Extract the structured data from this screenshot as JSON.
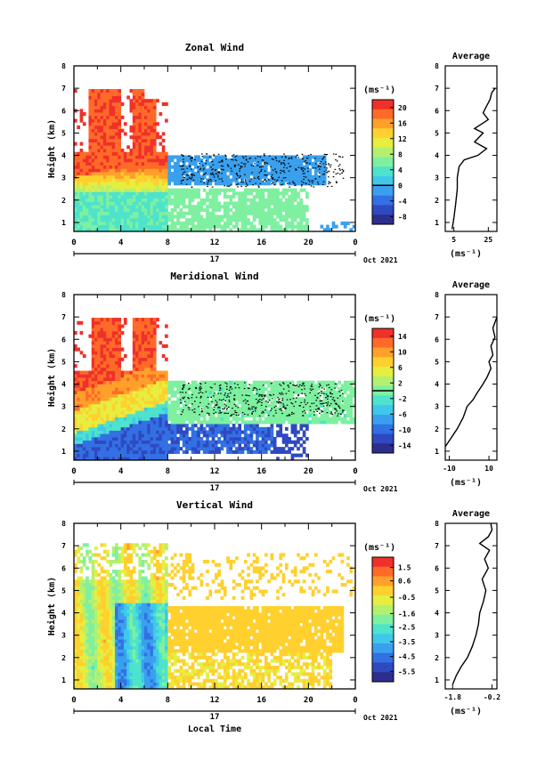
{
  "date_label": "Oct 2021",
  "day_label": "17",
  "xlabel": "Local Time",
  "ylabel": "Height (km)",
  "unit_label": "(ms⁻¹)",
  "avg_title": "Average",
  "avg_xlabel": "(ms⁻¹)",
  "palette": [
    "#2d2d8e",
    "#2f49c0",
    "#3270e4",
    "#3aa0ee",
    "#40c8ea",
    "#4de3cc",
    "#7ef0a0",
    "#b4f070",
    "#e6ee40",
    "#ffd02e",
    "#ffa02a",
    "#ff6a28",
    "#f0302a"
  ],
  "chart_data": [
    {
      "type": "heatmap",
      "title": "Zonal Wind",
      "x_ticks": [
        "0",
        "4",
        "8",
        "12",
        "16",
        "20",
        "0"
      ],
      "y_ticks": [
        "1",
        "2",
        "3",
        "4",
        "5",
        "6",
        "7",
        "8"
      ],
      "xlim": [
        0,
        24
      ],
      "ylim": [
        0.6,
        8
      ],
      "colorbar": {
        "ticks": [
          "20",
          "16",
          "12",
          "8",
          "4",
          "0",
          "-4",
          "-8"
        ],
        "range": [
          -10,
          22
        ],
        "marker": 0
      },
      "average": {
        "title": "Average",
        "x_ticks": [
          "5",
          "25"
        ],
        "xlim": [
          0,
          30
        ],
        "profile": [
          [
            0.7,
            4
          ],
          [
            1.2,
            5
          ],
          [
            1.8,
            6
          ],
          [
            2.5,
            7
          ],
          [
            3.0,
            7
          ],
          [
            3.5,
            8
          ],
          [
            3.8,
            11
          ],
          [
            4.0,
            19
          ],
          [
            4.3,
            24
          ],
          [
            4.6,
            17
          ],
          [
            5.0,
            22
          ],
          [
            5.2,
            17
          ],
          [
            5.4,
            21
          ],
          [
            5.6,
            25
          ],
          [
            5.9,
            22
          ],
          [
            6.2,
            24
          ],
          [
            6.5,
            26
          ],
          [
            6.8,
            27
          ],
          [
            7.0,
            29
          ]
        ]
      }
    },
    {
      "type": "heatmap",
      "title": "Meridional Wind",
      "x_ticks": [
        "0",
        "4",
        "8",
        "12",
        "16",
        "20",
        "0"
      ],
      "y_ticks": [
        "1",
        "2",
        "3",
        "4",
        "5",
        "6",
        "7",
        "8"
      ],
      "xlim": [
        0,
        24
      ],
      "ylim": [
        0.6,
        8
      ],
      "colorbar": {
        "ticks": [
          "14",
          "10",
          "6",
          "2",
          "-2",
          "-6",
          "-10",
          "-14"
        ],
        "range": [
          -16,
          16
        ],
        "marker": 0
      },
      "average": {
        "title": "Average",
        "x_ticks": [
          "-10",
          "10"
        ],
        "xlim": [
          -12,
          14
        ],
        "profile": [
          [
            1.2,
            -12
          ],
          [
            1.6,
            -9
          ],
          [
            2.0,
            -6
          ],
          [
            2.5,
            -3
          ],
          [
            3.0,
            -1
          ],
          [
            3.3,
            2
          ],
          [
            3.6,
            4
          ],
          [
            4.0,
            7
          ],
          [
            4.3,
            9
          ],
          [
            4.7,
            11
          ],
          [
            5.0,
            10
          ],
          [
            5.3,
            12
          ],
          [
            5.7,
            11
          ],
          [
            6.1,
            13
          ],
          [
            6.5,
            12
          ],
          [
            7.0,
            14
          ]
        ]
      }
    },
    {
      "type": "heatmap",
      "title": "Vertical Wind",
      "x_ticks": [
        "0",
        "4",
        "8",
        "12",
        "16",
        "20",
        "0"
      ],
      "y_ticks": [
        "1",
        "2",
        "3",
        "4",
        "5",
        "6",
        "7",
        "8"
      ],
      "xlim": [
        0,
        24
      ],
      "ylim": [
        0.6,
        8
      ],
      "colorbar": {
        "ticks": [
          "1.5",
          "0.6",
          "-0.5",
          "-1.6",
          "-2.5",
          "-3.5",
          "-4.5",
          "-5.5"
        ],
        "range": [
          -6.2,
          2.2
        ]
      },
      "average": {
        "title": "Average",
        "x_ticks": [
          "-1.8",
          "-0.2"
        ],
        "xlim": [
          -2.1,
          0
        ],
        "profile": [
          [
            0.8,
            -1.8
          ],
          [
            1.2,
            -1.65
          ],
          [
            1.6,
            -1.45
          ],
          [
            2.0,
            -1.2
          ],
          [
            2.5,
            -1.0
          ],
          [
            3.0,
            -0.85
          ],
          [
            3.5,
            -0.75
          ],
          [
            4.0,
            -0.7
          ],
          [
            4.5,
            -0.55
          ],
          [
            5.0,
            -0.45
          ],
          [
            5.5,
            -0.6
          ],
          [
            6.0,
            -0.35
          ],
          [
            6.4,
            -0.5
          ],
          [
            6.8,
            -0.3
          ],
          [
            7.1,
            -0.7
          ],
          [
            7.4,
            -0.35
          ],
          [
            7.7,
            -0.2
          ],
          [
            8.0,
            -0.25
          ]
        ]
      }
    }
  ]
}
